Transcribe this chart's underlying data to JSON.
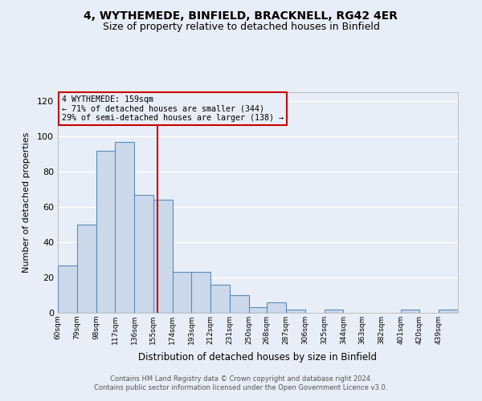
{
  "title": "4, WYTHEMEDE, BINFIELD, BRACKNELL, RG42 4ER",
  "subtitle": "Size of property relative to detached houses in Binfield",
  "xlabel": "Distribution of detached houses by size in Binfield",
  "ylabel": "Number of detached properties",
  "bin_labels": [
    "60sqm",
    "79sqm",
    "98sqm",
    "117sqm",
    "136sqm",
    "155sqm",
    "174sqm",
    "193sqm",
    "212sqm",
    "231sqm",
    "250sqm",
    "268sqm",
    "287sqm",
    "306sqm",
    "325sqm",
    "344sqm",
    "363sqm",
    "382sqm",
    "401sqm",
    "420sqm",
    "439sqm"
  ],
  "bar_values": [
    27,
    50,
    92,
    97,
    67,
    64,
    23,
    23,
    16,
    10,
    3,
    6,
    2,
    0,
    2,
    0,
    0,
    0,
    2,
    0,
    2
  ],
  "bar_color": "#ccd9ea",
  "bar_edge_color": "#5b8db8",
  "bin_edges": [
    60,
    79,
    98,
    117,
    136,
    155,
    174,
    193,
    212,
    231,
    250,
    268,
    287,
    306,
    325,
    344,
    363,
    382,
    401,
    420,
    439,
    458
  ],
  "vline_x": 159,
  "vline_color": "#cc0000",
  "ylim": [
    0,
    125
  ],
  "yticks": [
    0,
    20,
    40,
    60,
    80,
    100,
    120
  ],
  "annotation_title": "4 WYTHEMEDE: 159sqm",
  "annotation_line1": "← 71% of detached houses are smaller (344)",
  "annotation_line2": "29% of semi-detached houses are larger (138) →",
  "annotation_box_color": "#cc0000",
  "footer_line1": "Contains HM Land Registry data © Crown copyright and database right 2024.",
  "footer_line2": "Contains public sector information licensed under the Open Government Licence v3.0.",
  "background_color": "#e8eef7",
  "grid_color": "#ffffff",
  "title_fontsize": 10,
  "subtitle_fontsize": 9
}
